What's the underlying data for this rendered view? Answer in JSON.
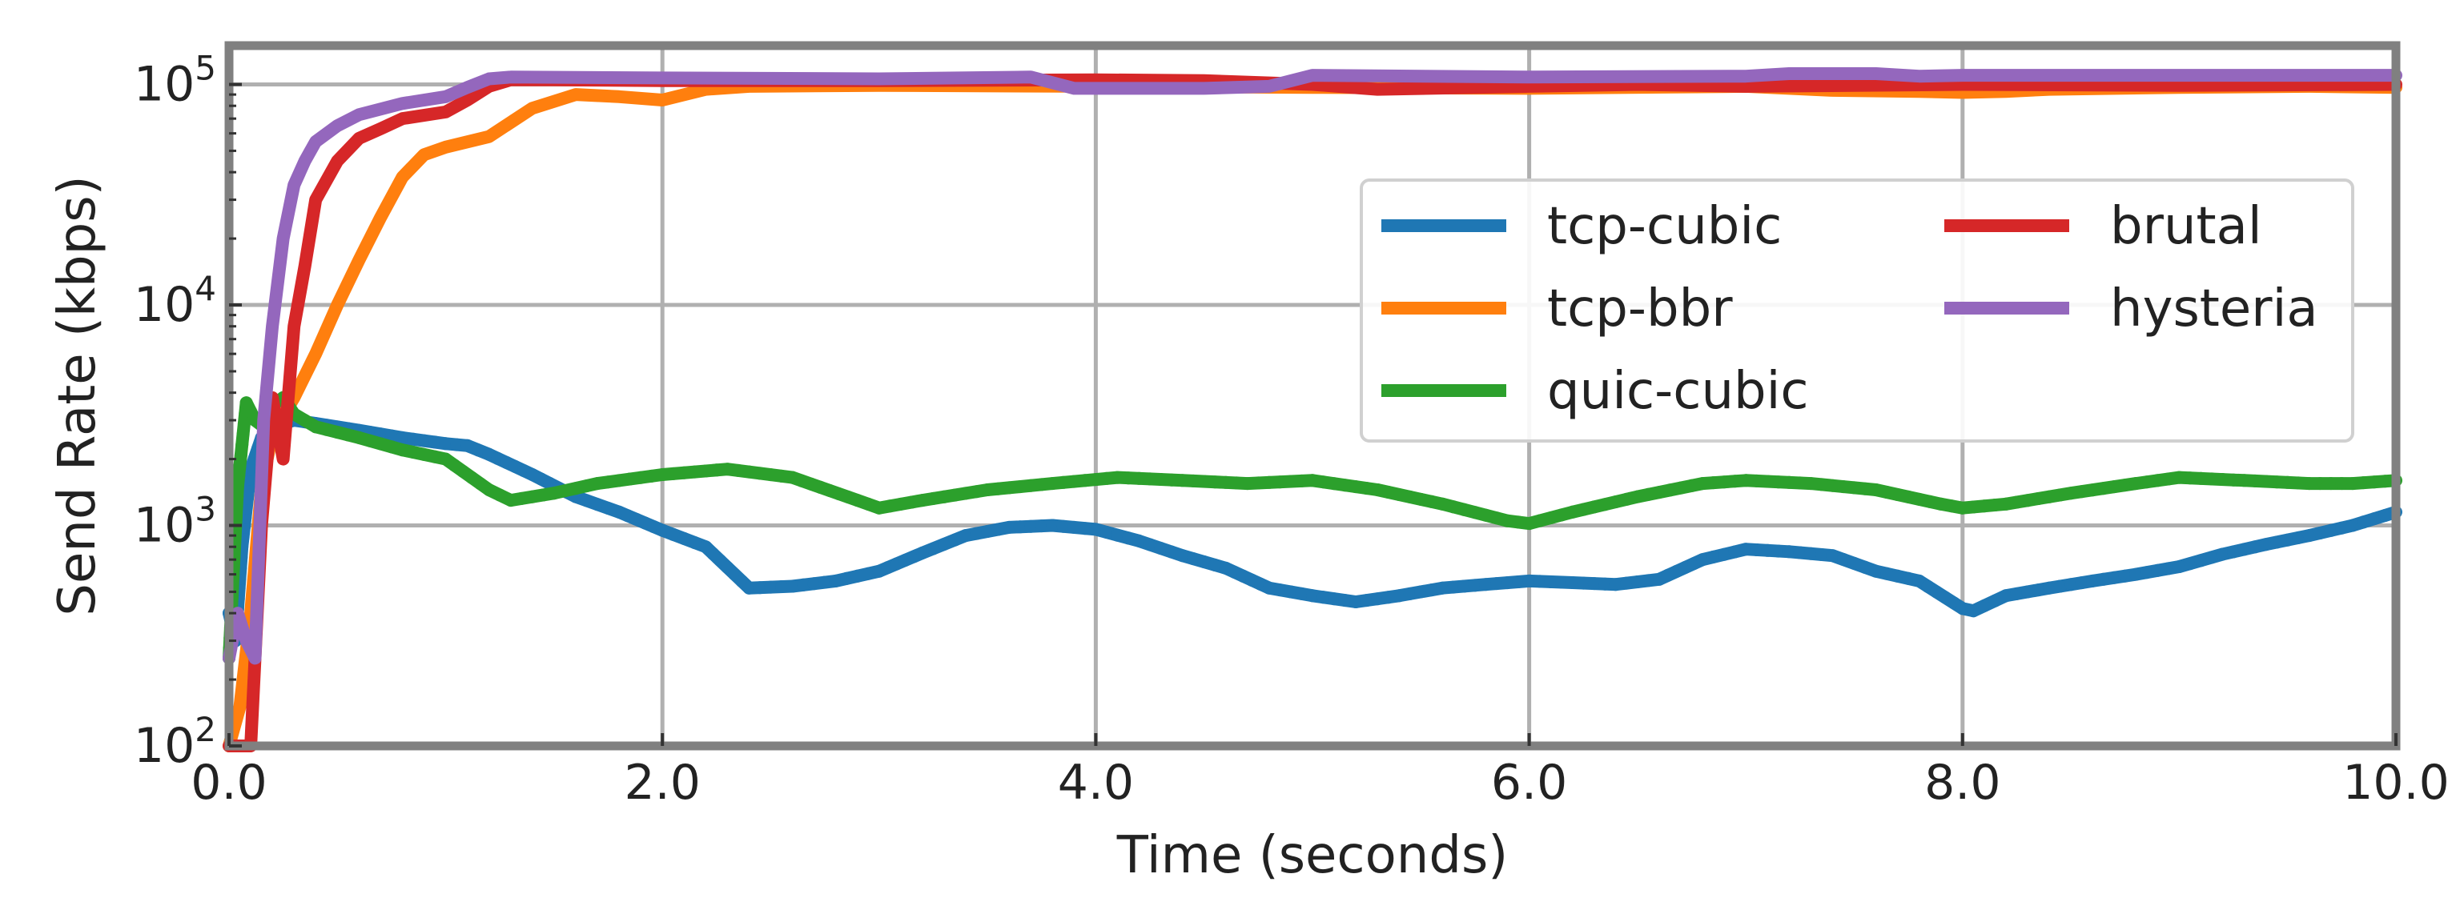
{
  "chart_data": {
    "type": "line",
    "xlabel": "Time (seconds)",
    "ylabel": "Send Rate (kbps)",
    "xlim": [
      0,
      10
    ],
    "ylim": [
      100,
      150000
    ],
    "yscale": "log",
    "grid": true,
    "legend_position": "center-right",
    "x_ticks": [
      {
        "value": 0,
        "label": "0.0"
      },
      {
        "value": 2,
        "label": "2.0"
      },
      {
        "value": 4,
        "label": "4.0"
      },
      {
        "value": 6,
        "label": "6.0"
      },
      {
        "value": 8,
        "label": "8.0"
      },
      {
        "value": 10,
        "label": "10.0"
      }
    ],
    "y_ticks": [
      {
        "value": 100,
        "base": "10",
        "exp": "2"
      },
      {
        "value": 1000,
        "base": "10",
        "exp": "3"
      },
      {
        "value": 10000,
        "base": "10",
        "exp": "4"
      },
      {
        "value": 100000,
        "base": "10",
        "exp": "5"
      }
    ],
    "series": [
      {
        "name": "tcp-cubic",
        "color": "#1f77b4",
        "markers": true,
        "x": [
          0,
          0.03,
          0.06,
          0.1,
          0.15,
          0.2,
          0.3,
          0.4,
          0.6,
          0.8,
          1.0,
          1.1,
          1.2,
          1.4,
          1.6,
          1.8,
          2.0,
          2.2,
          2.4,
          2.6,
          2.8,
          3.0,
          3.2,
          3.4,
          3.6,
          3.8,
          4.0,
          4.2,
          4.4,
          4.6,
          4.8,
          5.0,
          5.2,
          5.4,
          5.6,
          5.8,
          6.0,
          6.2,
          6.4,
          6.6,
          6.8,
          7.0,
          7.2,
          7.4,
          7.6,
          7.8,
          8.0,
          8.05,
          8.2,
          8.4,
          8.6,
          8.8,
          9.0,
          9.2,
          9.4,
          9.6,
          9.8,
          10.0
        ],
        "y": [
          400,
          300,
          800,
          1800,
          2500,
          2800,
          3000,
          2900,
          2700,
          2500,
          2350,
          2300,
          2100,
          1700,
          1350,
          1150,
          950,
          800,
          520,
          530,
          560,
          620,
          750,
          900,
          980,
          1000,
          960,
          850,
          730,
          640,
          520,
          480,
          450,
          480,
          520,
          540,
          560,
          550,
          540,
          570,
          700,
          780,
          760,
          730,
          620,
          560,
          420,
          410,
          480,
          520,
          560,
          600,
          650,
          740,
          820,
          900,
          1000,
          1150
        ]
      },
      {
        "name": "tcp-bbr",
        "color": "#ff7f0e",
        "markers": false,
        "x": [
          0,
          0.05,
          0.1,
          0.15,
          0.2,
          0.3,
          0.4,
          0.5,
          0.6,
          0.7,
          0.8,
          0.9,
          1.0,
          1.2,
          1.4,
          1.6,
          1.8,
          2.0,
          2.2,
          2.4,
          3.0,
          4.0,
          5.0,
          6.0,
          7.0,
          7.4,
          7.8,
          8.0,
          8.2,
          8.4,
          9.0,
          9.6,
          10.0
        ],
        "y": [
          100,
          150,
          400,
          1500,
          2600,
          3800,
          6000,
          10000,
          16000,
          25000,
          38000,
          48000,
          52000,
          58000,
          78000,
          90000,
          88000,
          85000,
          95000,
          98000,
          99000,
          98000,
          97000,
          96000,
          98000,
          94000,
          93000,
          92000,
          93000,
          95000,
          97000,
          98000,
          97000
        ]
      },
      {
        "name": "quic-cubic",
        "color": "#2ca02c",
        "markers": true,
        "x": [
          0,
          0.04,
          0.08,
          0.12,
          0.16,
          0.2,
          0.25,
          0.3,
          0.4,
          0.6,
          0.8,
          1.0,
          1.2,
          1.3,
          1.5,
          1.7,
          2.0,
          2.3,
          2.6,
          2.9,
          3.0,
          3.2,
          3.5,
          3.8,
          4.1,
          4.4,
          4.7,
          5.0,
          5.3,
          5.6,
          5.9,
          6.0,
          6.2,
          6.5,
          6.8,
          7.0,
          7.3,
          7.6,
          7.9,
          8.0,
          8.2,
          8.5,
          8.8,
          9.0,
          9.3,
          9.6,
          9.8,
          10.0
        ],
        "y": [
          250,
          1500,
          3600,
          3000,
          2800,
          3500,
          3800,
          3200,
          2800,
          2500,
          2200,
          2000,
          1450,
          1300,
          1400,
          1550,
          1700,
          1800,
          1650,
          1300,
          1200,
          1300,
          1450,
          1550,
          1650,
          1600,
          1550,
          1600,
          1450,
          1250,
          1050,
          1020,
          1150,
          1350,
          1550,
          1600,
          1550,
          1450,
          1250,
          1200,
          1250,
          1400,
          1550,
          1650,
          1600,
          1550,
          1550,
          1600
        ]
      },
      {
        "name": "brutal",
        "color": "#d62728",
        "markers": false,
        "x": [
          0,
          0.1,
          0.15,
          0.2,
          0.25,
          0.3,
          0.35,
          0.4,
          0.5,
          0.6,
          0.7,
          0.8,
          1.0,
          1.1,
          1.2,
          1.3,
          1.5,
          2.0,
          3.0,
          4.0,
          4.5,
          5.0,
          5.3,
          6.0,
          6.5,
          7.0,
          8.0,
          9.0,
          10.0
        ],
        "y": [
          100,
          100,
          1000,
          3800,
          2000,
          8000,
          15000,
          30000,
          45000,
          57000,
          63000,
          70000,
          75000,
          85000,
          98000,
          105000,
          105000,
          104000,
          104000,
          105000,
          104000,
          100000,
          95000,
          98000,
          100000,
          98000,
          100000,
          99000,
          100000
        ]
      },
      {
        "name": "hysteria",
        "color": "#9467bd",
        "markers": false,
        "x": [
          0,
          0.04,
          0.08,
          0.12,
          0.16,
          0.2,
          0.25,
          0.3,
          0.35,
          0.4,
          0.5,
          0.6,
          0.8,
          1.0,
          1.1,
          1.2,
          1.3,
          2.0,
          3.0,
          3.7,
          3.9,
          4.0,
          4.5,
          4.8,
          5.0,
          6.0,
          7.0,
          7.2,
          7.6,
          7.8,
          8.0,
          9.0,
          10.0
        ],
        "y": [
          250,
          400,
          300,
          250,
          3000,
          8000,
          20000,
          35000,
          45000,
          55000,
          65000,
          73000,
          82000,
          88000,
          97000,
          106000,
          108000,
          107000,
          106000,
          108000,
          96000,
          96000,
          96000,
          98000,
          110000,
          108000,
          109000,
          112000,
          112000,
          109000,
          110000,
          110000,
          110000
        ]
      }
    ]
  }
}
